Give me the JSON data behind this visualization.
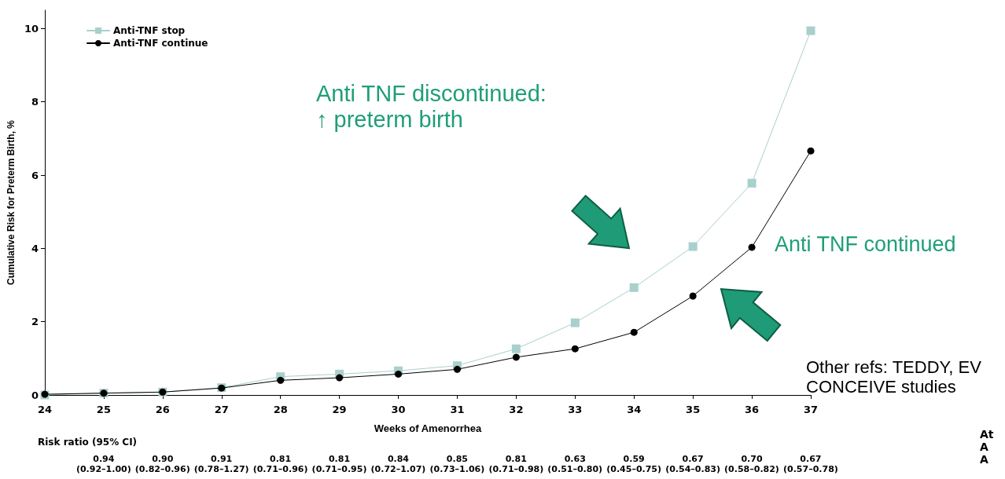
{
  "chart_data": {
    "type": "line",
    "xlabel": "Weeks of Amenorrhea",
    "ylabel": "Cumulative Risk for Preterm Birth, %",
    "x": [
      24,
      25,
      26,
      27,
      28,
      29,
      30,
      31,
      32,
      33,
      34,
      35,
      36,
      37
    ],
    "series": [
      {
        "name": "Anti-TNF stop",
        "color": "#a8d0cc",
        "marker": "square",
        "values": [
          0.0,
          0.05,
          0.08,
          0.2,
          0.5,
          0.57,
          0.66,
          0.8,
          1.26,
          1.97,
          2.93,
          4.05,
          5.78,
          9.94
        ]
      },
      {
        "name": "Anti-TNF continue",
        "color": "#000000",
        "marker": "circle",
        "values": [
          0.02,
          0.05,
          0.08,
          0.19,
          0.4,
          0.47,
          0.57,
          0.7,
          1.03,
          1.26,
          1.71,
          2.7,
          4.03,
          6.66
        ]
      }
    ],
    "xlim": [
      24,
      37
    ],
    "xticks": [
      24,
      25,
      26,
      27,
      28,
      29,
      30,
      31,
      32,
      33,
      34,
      35,
      36,
      37
    ],
    "ylim": [
      0,
      10.5
    ],
    "yticks": [
      0,
      2,
      4,
      6,
      8,
      10
    ],
    "grid": false,
    "legend": "top left",
    "line_style": "solid",
    "annotations": [
      "Anti TNF discontinued:\n↑ preterm birth",
      "Anti TNF continued",
      "Other refs: TEDDY, EV\nCONCEIVE studies",
      "Risk ratio (95% CI)",
      "At\nA\nA",
      "0.94\n(0.92–1.00)",
      "0.90\n(0.82–0.96)",
      "0.91\n(0.78–1.27)",
      "0.81\n(0.71–0.96)",
      "0.81\n(0.71–0.95)",
      "0.84\n(0.72–1.07)",
      "0.85\n(0.73–1.06)",
      "0.81\n(0.71–0.98)",
      "0.63\n(0.51–0.80)",
      "0.59\n(0.45–0.75)",
      "0.67\n(0.54–0.83)",
      "0.70\n(0.58–0.82)",
      "0.67\n(0.57–0.78)"
    ]
  }
}
